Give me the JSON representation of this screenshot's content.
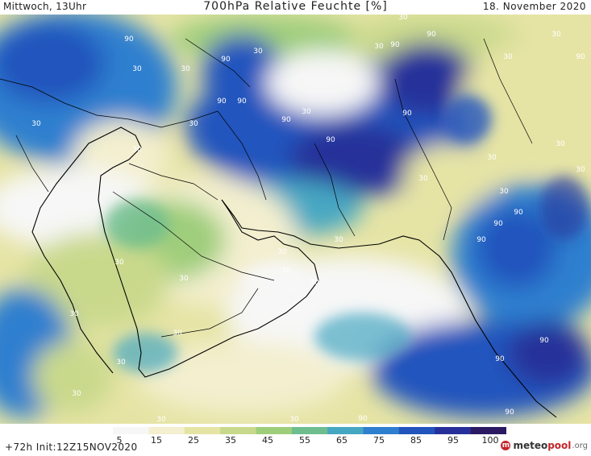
{
  "header": {
    "left": "Mittwoch, 13Uhr",
    "title": "700hPa Relative Feuchte [%]",
    "date": "18. November 2020"
  },
  "footer": {
    "init": "+72h Init:12Z15NOV2020",
    "brand_prefix": "meteo",
    "brand_accent": "pool",
    "brand_suffix": ".org"
  },
  "legend": {
    "ticks": [
      "5",
      "15",
      "25",
      "35",
      "45",
      "55",
      "65",
      "75",
      "85",
      "95",
      "100"
    ],
    "colors": [
      "#f7f7f7",
      "#f3efcf",
      "#e6e4a5",
      "#c9d98c",
      "#9fce7b",
      "#6dbd8f",
      "#46a7c2",
      "#2f7fcf",
      "#2254bd",
      "#27309a",
      "#2b1a63"
    ]
  },
  "contour_labels": [
    {
      "text": "90"
    },
    {
      "text": "30"
    },
    {
      "text": "30"
    },
    {
      "text": "30"
    },
    {
      "text": "30"
    },
    {
      "text": "30"
    },
    {
      "text": "90"
    },
    {
      "text": "90"
    },
    {
      "text": "30"
    },
    {
      "text": "30"
    },
    {
      "text": "90"
    },
    {
      "text": "90"
    },
    {
      "text": "90"
    },
    {
      "text": "30"
    },
    {
      "text": "30"
    },
    {
      "text": "30"
    },
    {
      "text": "30"
    },
    {
      "text": "90"
    },
    {
      "text": "90"
    },
    {
      "text": "90"
    },
    {
      "text": "30"
    },
    {
      "text": "30"
    },
    {
      "text": "30"
    },
    {
      "text": "30"
    },
    {
      "text": "90"
    },
    {
      "text": "90"
    },
    {
      "text": "90"
    },
    {
      "text": "30"
    },
    {
      "text": "90"
    },
    {
      "text": "30"
    },
    {
      "text": "30"
    },
    {
      "text": "30"
    },
    {
      "text": "30"
    },
    {
      "text": "30"
    },
    {
      "text": "30"
    },
    {
      "text": "30"
    },
    {
      "text": "30"
    },
    {
      "text": "30"
    },
    {
      "text": "30"
    },
    {
      "text": "90"
    },
    {
      "text": "90"
    },
    {
      "text": "90"
    },
    {
      "text": "30"
    },
    {
      "text": "30"
    },
    {
      "text": "90"
    }
  ]
}
